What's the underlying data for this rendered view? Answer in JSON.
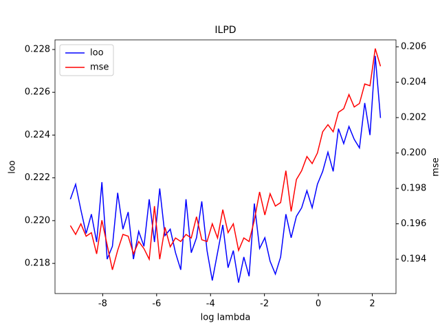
{
  "chart_data": {
    "type": "line",
    "title": "ILPD",
    "xlabel": "log lambda",
    "ylabel": "loo",
    "y2label": "mse",
    "x": [
      -9.2,
      -9.005,
      -8.81,
      -8.615,
      -8.42,
      -8.225,
      -8.03,
      -7.835,
      -7.64,
      -7.445,
      -7.25,
      -7.055,
      -6.86,
      -6.665,
      -6.47,
      -6.275,
      -6.08,
      -5.885,
      -5.69,
      -5.495,
      -5.3,
      -5.105,
      -4.91,
      -4.715,
      -4.52,
      -4.325,
      -4.13,
      -3.935,
      -3.74,
      -3.545,
      -3.35,
      -3.155,
      -2.96,
      -2.765,
      -2.57,
      -2.375,
      -2.18,
      -1.985,
      -1.79,
      -1.595,
      -1.4,
      -1.205,
      -1.01,
      -0.815,
      -0.62,
      -0.425,
      -0.23,
      -0.035,
      0.16,
      0.355,
      0.55,
      0.745,
      0.94,
      1.135,
      1.33,
      1.525,
      1.72,
      1.915,
      2.11,
      2.305
    ],
    "series": [
      {
        "name": "loo",
        "color": "#0000ff",
        "axis": "y",
        "values": [
          0.221,
          0.2217,
          0.2205,
          0.2194,
          0.2203,
          0.219,
          0.2218,
          0.2182,
          0.2188,
          0.2213,
          0.2196,
          0.2204,
          0.2182,
          0.2195,
          0.2188,
          0.221,
          0.219,
          0.2215,
          0.2193,
          0.2196,
          0.2185,
          0.2177,
          0.221,
          0.2185,
          0.2192,
          0.2209,
          0.2186,
          0.2172,
          0.2185,
          0.2198,
          0.2178,
          0.2186,
          0.2171,
          0.2183,
          0.2174,
          0.2208,
          0.2187,
          0.2192,
          0.2181,
          0.2175,
          0.2183,
          0.2203,
          0.2192,
          0.2202,
          0.2206,
          0.2214,
          0.2206,
          0.2217,
          0.2223,
          0.2232,
          0.2223,
          0.2243,
          0.2236,
          0.2244,
          0.2238,
          0.2234,
          0.2255,
          0.224,
          0.2277,
          0.2248
        ]
      },
      {
        "name": "mse",
        "color": "#ff0000",
        "axis": "y2",
        "values": [
          0.1959,
          0.1954,
          0.196,
          0.1953,
          0.1955,
          0.1943,
          0.1962,
          0.1948,
          0.1934,
          0.1945,
          0.1954,
          0.1953,
          0.1943,
          0.195,
          0.1946,
          0.194,
          0.197,
          0.194,
          0.1958,
          0.1947,
          0.1952,
          0.195,
          0.1954,
          0.1952,
          0.1964,
          0.1951,
          0.195,
          0.196,
          0.1952,
          0.1968,
          0.1955,
          0.196,
          0.1945,
          0.1952,
          0.195,
          0.1962,
          0.1978,
          0.1965,
          0.1977,
          0.197,
          0.1972,
          0.199,
          0.1967,
          0.1985,
          0.199,
          0.1998,
          0.1994,
          0.2,
          0.2012,
          0.2016,
          0.2012,
          0.2023,
          0.2025,
          0.2033,
          0.2026,
          0.2028,
          0.2039,
          0.2038,
          0.2059,
          0.2049
        ]
      }
    ],
    "xlim": [
      -9.77,
      2.88
    ],
    "xticks": [
      -8,
      -6,
      -4,
      -2,
      0,
      2
    ],
    "ylim": [
      0.21659,
      0.22845
    ],
    "yticks": [
      0.218,
      {
        "value": 0.22,
        "label": "0.220"
      },
      0.222,
      0.224,
      0.226,
      0.228
    ],
    "y2lim": [
      0.19206,
      0.20639
    ],
    "y2ticks": [
      0.194,
      0.196,
      0.198,
      {
        "value": 0.2,
        "label": "0.200"
      },
      0.202,
      0.204,
      0.206
    ],
    "legend": "upper left",
    "grid": false
  }
}
